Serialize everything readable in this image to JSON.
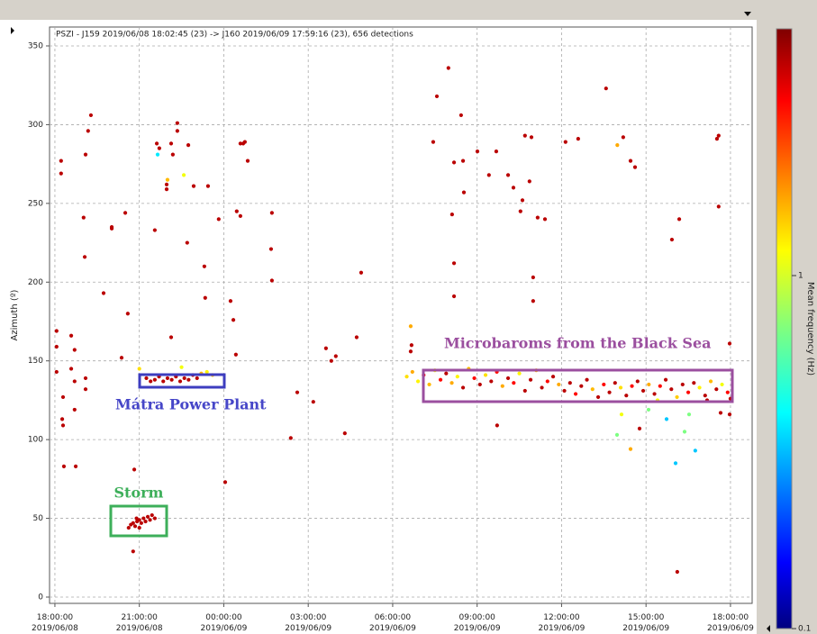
{
  "chart_data": {
    "type": "scatter",
    "header": "PSZI - J159 2019/06/08 18:02:45 (23) -> J160 2019/06/09 17:59:16 (23), 656 detections",
    "ylabel": "Azimuth (º)",
    "colorbar_label": "Mean frequency (Hz)",
    "annotations": [
      "Mátra Power Plant",
      "Microbaroms from the Black Sea",
      "Storm"
    ],
    "xlim": [
      -0.19,
      24.77
    ],
    "xticks": [
      {
        "value": 0,
        "label": "18:00:00 2019/06/08"
      },
      {
        "value": 3,
        "label": "21:00:00 2019/06/08"
      },
      {
        "value": 6,
        "label": "00:00:00 2019/06/09"
      },
      {
        "value": 9,
        "label": "03:00:00 2019/06/09"
      },
      {
        "value": 12,
        "label": "06:00:00 2019/06/09"
      },
      {
        "value": 15,
        "label": "09:00:00 2019/06/09"
      },
      {
        "value": 18,
        "label": "12:00:00 2019/06/09"
      },
      {
        "value": 21,
        "label": "15:00:00 2019/06/09"
      },
      {
        "value": 24,
        "label": "18:00:00 2019/06/09"
      }
    ],
    "ylim": [
      -4,
      362
    ],
    "yticks": [
      0,
      50,
      100,
      150,
      200,
      250,
      300,
      350
    ],
    "grid": true,
    "clim": [
      0.1,
      5
    ],
    "cticks": [
      0.1,
      1
    ],
    "color_scale": "log",
    "colormap": "jet",
    "x": [
      0.06,
      0.06,
      0.06,
      0.22,
      0.22,
      0.29,
      0.29,
      0.26,
      0.32,
      0.58,
      0.58,
      0.7,
      0.7,
      0.7,
      0.74,
      1.02,
      1.06,
      1.09,
      1.09,
      1.09,
      1.18,
      1.28,
      1.73,
      2.02,
      2.02,
      2.37,
      2.5,
      2.59,
      2.82,
      2.78,
      3.55,
      3.62,
      3.71,
      3.65,
      4.0,
      3.97,
      3.97,
      4.13,
      4.19,
      4.35,
      4.35,
      4.58,
      4.74,
      4.7,
      4.93,
      5.31,
      5.34,
      5.44,
      4.13,
      5.82,
      6.05,
      6.24,
      6.34,
      6.43,
      6.46,
      6.59,
      6.59,
      6.69,
      6.75,
      6.85,
      7.71,
      7.68,
      7.71,
      8.61,
      8.38,
      9.18,
      9.63,
      9.82,
      9.98,
      10.3,
      10.72,
      10.88,
      12.64,
      12.67,
      12.64,
      13.44,
      13.57,
      13.98,
      14.11,
      14.18,
      14.18,
      14.18,
      14.43,
      14.5,
      14.53,
      15.01,
      15.42,
      15.68,
      15.71,
      16.1,
      16.29,
      16.54,
      16.61,
      16.7,
      16.86,
      16.93,
      16.99,
      16.99,
      17.15,
      17.41,
      18.14,
      18.59,
      19.58,
      19.98,
      20.19,
      20.45,
      20.61,
      21.92,
      22.18,
      22.11,
      23.52,
      23.58,
      23.58,
      23.97,
      19.97,
      20.45,
      21.09,
      21.73,
      22.05,
      22.37,
      22.75,
      20.13,
      20.77,
      21.41,
      23.17,
      23.65,
      23.97,
      22.53,
      3.25,
      3.4,
      3.55,
      3.7,
      3.85,
      4.0,
      4.15,
      4.3,
      4.45,
      4.6,
      4.75,
      4.9,
      5.05,
      5.2,
      5.4,
      3.0,
      4.5,
      5.6,
      2.62,
      2.7,
      2.78,
      2.85,
      2.92,
      3.0,
      3.07,
      3.15,
      3.22,
      3.3,
      3.38,
      3.45,
      3.55,
      3.0,
      2.9,
      12.5,
      12.7,
      12.9,
      13.1,
      13.3,
      13.5,
      13.7,
      13.9,
      14.1,
      14.3,
      14.5,
      14.7,
      14.9,
      15.1,
      15.3,
      15.5,
      15.7,
      15.9,
      16.1,
      16.3,
      16.5,
      16.7,
      16.9,
      17.1,
      17.3,
      17.5,
      17.7,
      17.9,
      18.1,
      18.3,
      18.5,
      18.7,
      18.9,
      19.1,
      19.3,
      19.5,
      19.7,
      19.9,
      20.1,
      20.3,
      20.5,
      20.7,
      20.9,
      21.1,
      21.3,
      21.5,
      21.7,
      21.9,
      22.1,
      22.3,
      22.5,
      22.7,
      22.9,
      23.1,
      23.3,
      23.5,
      23.7,
      23.9,
      24.0
    ],
    "values": [
      169,
      159,
      143,
      277,
      269,
      127,
      109,
      113,
      83,
      166,
      145,
      157,
      137,
      119,
      83,
      241,
      216,
      281,
      139,
      132,
      296,
      306,
      193,
      235,
      234,
      152,
      244,
      180,
      81,
      29,
      233,
      288,
      285,
      281,
      265,
      262,
      259,
      288,
      281,
      301,
      296,
      268,
      287,
      225,
      261,
      210,
      190,
      261,
      165,
      240,
      73,
      188,
      176,
      154,
      245,
      242,
      288,
      288,
      289,
      277,
      244,
      221,
      201,
      130,
      101,
      124,
      158,
      150,
      153,
      104,
      165,
      206,
      172,
      160,
      156,
      289,
      318,
      336,
      243,
      276,
      212,
      191,
      306,
      277,
      257,
      283,
      268,
      283,
      109,
      268,
      260,
      245,
      252,
      293,
      264,
      292,
      203,
      188,
      241,
      240,
      289,
      291,
      323,
      287,
      292,
      277,
      273,
      227,
      240,
      16,
      291,
      293,
      248,
      161,
      103,
      94,
      119,
      113,
      85,
      105,
      93,
      116,
      107,
      125,
      125,
      117,
      116,
      116,
      139,
      137,
      138,
      140,
      137,
      139,
      138,
      140,
      137,
      139,
      138,
      141,
      139,
      142,
      143,
      145,
      146,
      141,
      44,
      46,
      47,
      45,
      48,
      49,
      47,
      50,
      48,
      51,
      49,
      52,
      50,
      44,
      50,
      140,
      143,
      137,
      141,
      135,
      144,
      138,
      142,
      136,
      140,
      133,
      145,
      139,
      135,
      141,
      137,
      143,
      134,
      139,
      136,
      142,
      131,
      138,
      144,
      133,
      137,
      140,
      135,
      131,
      136,
      129,
      134,
      138,
      132,
      127,
      135,
      130,
      136,
      133,
      128,
      134,
      137,
      131,
      135,
      129,
      134,
      138,
      132,
      127,
      135,
      130,
      136,
      133,
      128,
      137,
      132,
      135,
      130,
      126
    ],
    "color_values": [
      4,
      4,
      4,
      4,
      4,
      4,
      4,
      4,
      4,
      4,
      4,
      4,
      4,
      4,
      4,
      4,
      4,
      4,
      4,
      4,
      4,
      4,
      4,
      4,
      4,
      4,
      4,
      4,
      4,
      4,
      4,
      4,
      4,
      0.4,
      1.5,
      4,
      4,
      4,
      4,
      4,
      4,
      1.1,
      4,
      4,
      4,
      4,
      4,
      4,
      4,
      4,
      4,
      4,
      4,
      4,
      4,
      4,
      4,
      4,
      4,
      4,
      4,
      4,
      4,
      4,
      4,
      4,
      4,
      4,
      4,
      4,
      4,
      4,
      1.6,
      4,
      4,
      4,
      4,
      4,
      4,
      4,
      4,
      4,
      4,
      4,
      4,
      4,
      4,
      4,
      4,
      4,
      4,
      4,
      4,
      4,
      4,
      4,
      4,
      4,
      4,
      4,
      4,
      4,
      4,
      1.6,
      4,
      4,
      4,
      4,
      4,
      4,
      4,
      4,
      4,
      4,
      0.7,
      1.6,
      0.7,
      0.35,
      0.35,
      0.7,
      0.35,
      1.1,
      4,
      1.1,
      4,
      4,
      4,
      0.7,
      4,
      4,
      4,
      4,
      4,
      4,
      4,
      4,
      4,
      4,
      4,
      4,
      4,
      1.5,
      1.2,
      1.3,
      1.1,
      1.5,
      4,
      4,
      4,
      4,
      4,
      4,
      4,
      4,
      4,
      4,
      4,
      4,
      4,
      4,
      4,
      1.3,
      1.6,
      1.2,
      3,
      1.5,
      1.1,
      3,
      4,
      1.6,
      1.2,
      4,
      1.5,
      3,
      4,
      1.3,
      4,
      3,
      1.6,
      4,
      3,
      1.2,
      4,
      4,
      1.5,
      4,
      3,
      4,
      1.6,
      4,
      4,
      3,
      4,
      4,
      1.5,
      4,
      3,
      4,
      4,
      1.3,
      4,
      3,
      4,
      4,
      1.6,
      4,
      3,
      4,
      4,
      1.4,
      4,
      3,
      4,
      1.2,
      4,
      1.5,
      4,
      1.1,
      3,
      4
    ]
  }
}
